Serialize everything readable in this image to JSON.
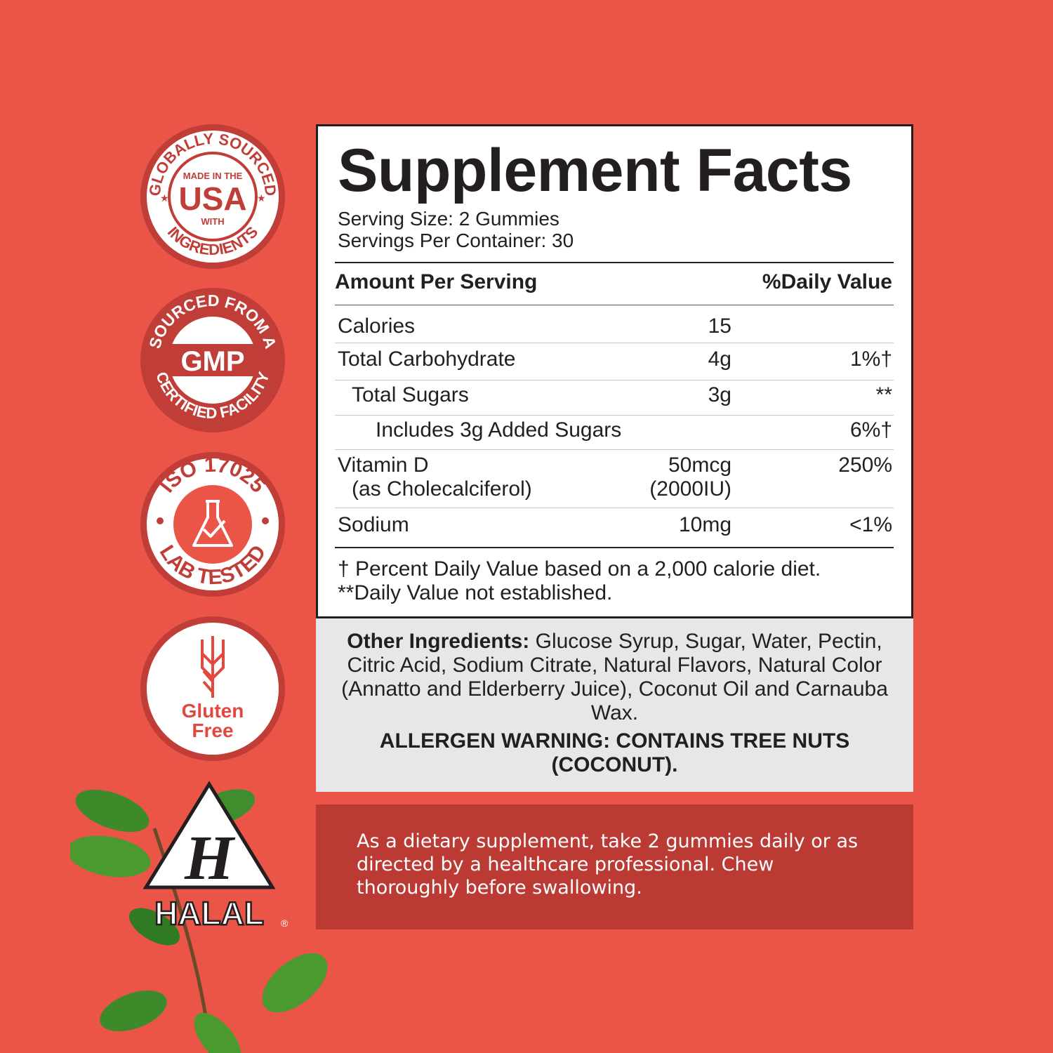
{
  "colors": {
    "background": "#ea5548",
    "badge": "#c13d37",
    "directions_bg": "#bc3a34",
    "ingredients_bg": "#e6e7e8"
  },
  "badges": [
    {
      "top": "GLOBALLY SOURCED",
      "line1": "MADE IN THE",
      "big": "USA",
      "line2": "WITH",
      "bottom": "INGREDIENTS"
    },
    {
      "top": "SOURCED FROM A",
      "big": "GMP",
      "bottom": "CERTIFIED FACILITY"
    },
    {
      "top": "ISO 17025",
      "bottom": "LAB TESTED",
      "icon": "flask-check-icon"
    },
    {
      "line1": "Gluten",
      "line2": "Free",
      "icon": "wheat-icon"
    },
    {
      "big": "H",
      "label": "HALAL",
      "mark": "®"
    }
  ],
  "facts": {
    "title": "Supplement Facts",
    "serving_size": "Serving Size: 2 Gummies",
    "servings_per_container": "Servings Per Container: 30",
    "header_amount": "Amount Per Serving",
    "header_dv": "%Daily Value",
    "rows": [
      {
        "name": "Calories",
        "amount": "15",
        "dv": ""
      },
      {
        "name": "Total Carbohydrate",
        "amount": "4g",
        "dv": "1%†"
      },
      {
        "name": "Total Sugars",
        "amount": "3g",
        "dv": "**"
      },
      {
        "name": "Includes 3g Added Sugars",
        "amount": "",
        "dv": "6%†"
      },
      {
        "name": "Vitamin D",
        "name2": "(as Cholecalciferol)",
        "amount": "50mcg",
        "amount2": "(2000IU)",
        "dv": "250%"
      },
      {
        "name": "Sodium",
        "amount": "10mg",
        "dv": "<1%"
      }
    ],
    "footnote1": "† Percent Daily Value based on a 2,000 calorie diet.",
    "footnote2": "**Daily Value not established."
  },
  "ingredients": {
    "label": "Other Ingredients:",
    "text": " Glucose Syrup, Sugar, Water, Pectin, Citric Acid, Sodium Citrate, Natural Flavors, Natural Color (Annatto and Elderberry Juice), Coconut Oil and Carnauba Wax.",
    "allergen": "ALLERGEN WARNING:  CONTAINS TREE NUTS (COCONUT)."
  },
  "directions": "As a dietary supplement, take 2 gummies daily or as directed by a healthcare professional. Chew thoroughly before swallowing."
}
